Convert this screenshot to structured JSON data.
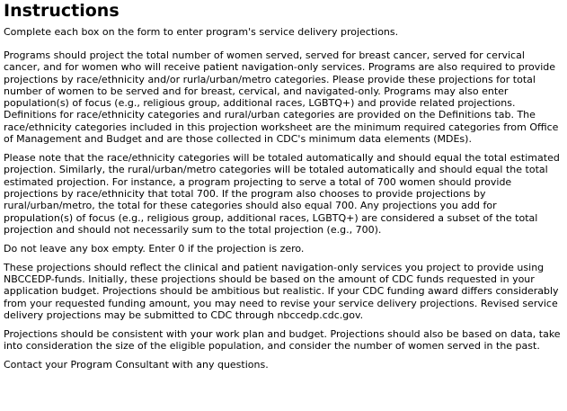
{
  "page": {
    "background_color": "#ffffff",
    "text_color": "#000000"
  },
  "heading": "Instructions",
  "paragraphs": [
    "Complete each box on the form to enter program's service delivery projections.",
    "Programs should project the total number of women served, served for breast cancer, served for cervical cancer, and for women who will receive patient navigation-only services. Programs are also required to provide projections by race/ethnicity and/or rurla/urban/metro categories. Please provide these projections for total number of women to be served and for breast, cervical, and navigated-only. Programs may also enter population(s) of focus (e.g., religious group, additional races, LGBTQ+) and provide related projections. Definitions for race/ethnicity categories and rural/urban categories are provided on the Definitions tab. The race/ethnicity categories included in this projection worksheet are the minimum required categories from Office of Management and Budget and are those collected in CDC's minimum data elements (MDEs).",
    "Please note that the race/ethnicity categories will be totaled automatically and should equal the total estimated projection. Similarly, the rural/urban/metro categories will be totaled automatically and should equal the total estimated projection. For instance, a program projecting to serve a total of 700 women should provide projections by race/ethnicity that total 700. If the program also chooses to provide projections by rural/urban/metro, the total for these categories should also equal 700. Any projections you add for propulation(s) of focus (e.g., religious group, additional races, LGBTQ+) are considered a subset of the total projection and should not necessarily sum to the total projection (e.g., 700).",
    "Do not leave any box empty. Enter 0 if the projection is zero.",
    "These projections should reflect the clinical and patient navigation-only services you project to provide using NBCCEDP-funds. Initially, these projections should be based on the amount of CDC funds requested in your application budget. Projections should be ambitious but realistic. If your CDC funding award differs considerably from your requested funding amount, you may need to revise your service delivery projections. Revised service delivery projections may be submitted to CDC through nbccedp.cdc.gov.",
    "Projections should be consistent with your work plan and budget. Projections should also be based on data, take into consideration the size of the eligible population, and consider the number of women served in the past.",
    "Contact your Program Consultant with any questions."
  ]
}
